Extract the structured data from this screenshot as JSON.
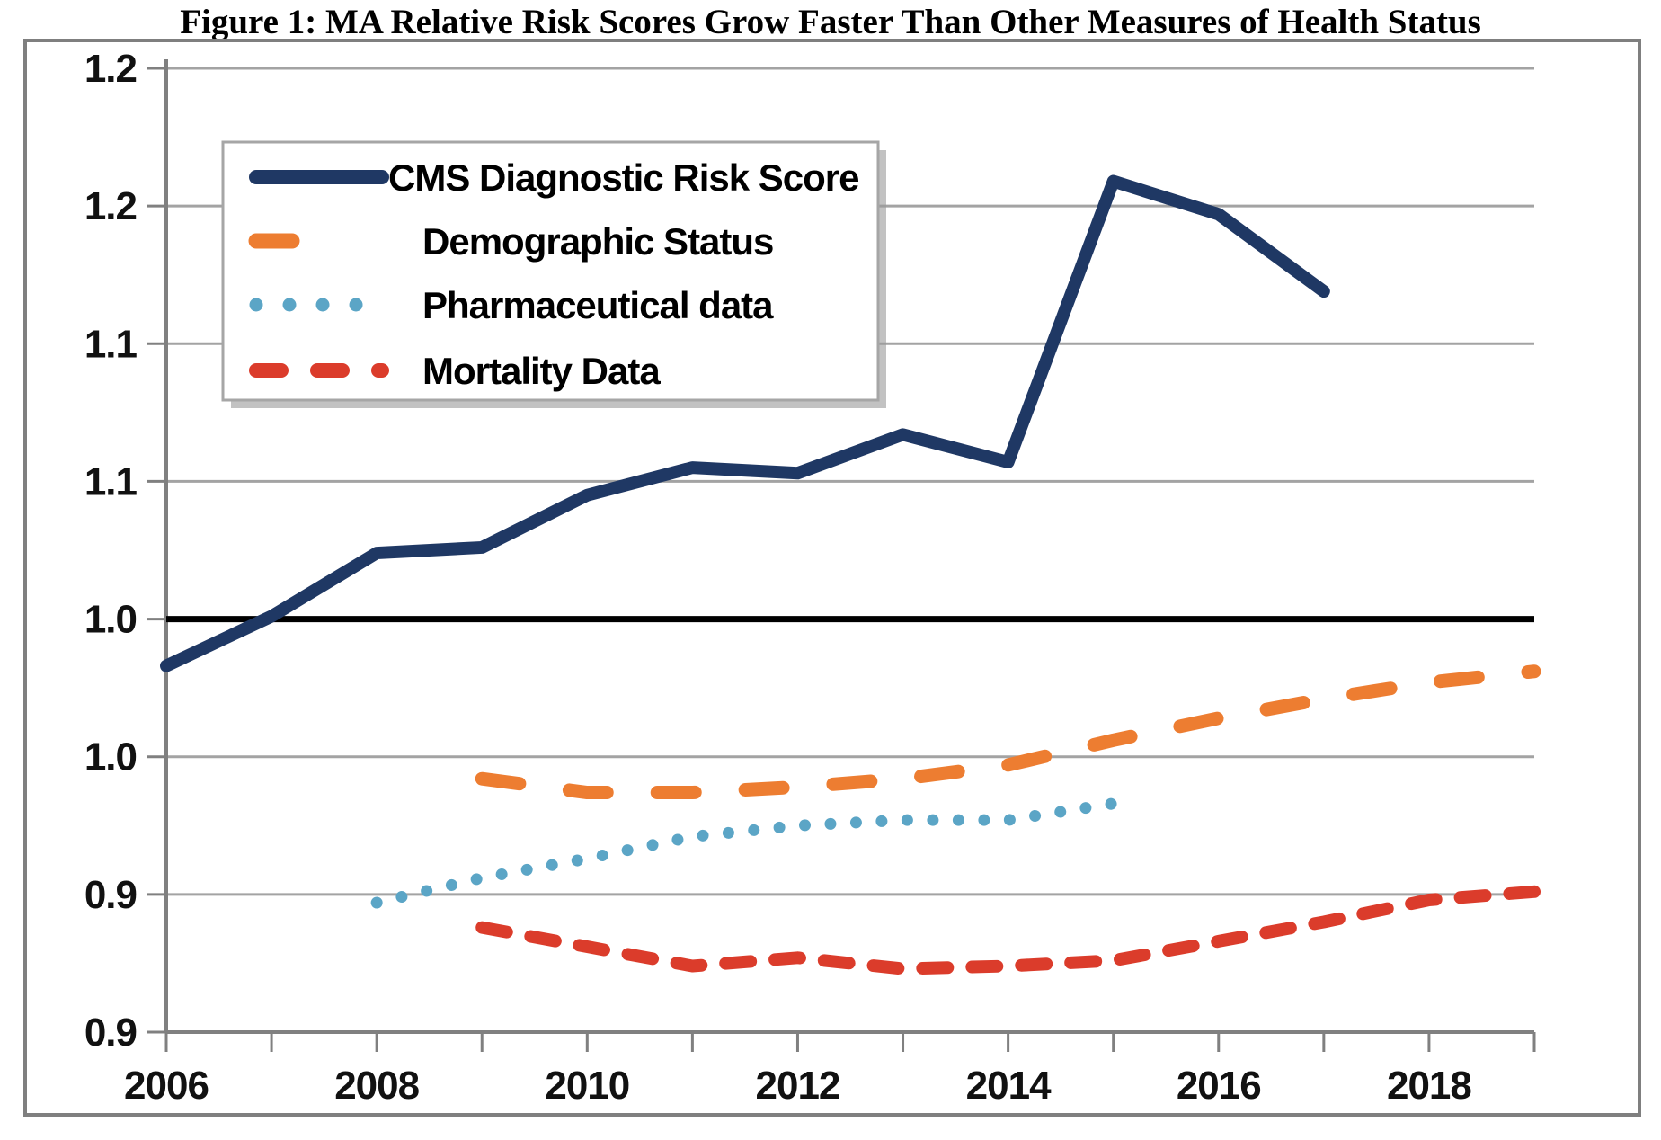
{
  "title": "Figure 1: MA Relative Risk Scores Grow Faster Than Other Measures of Health Status",
  "colors": {
    "navy": "#1F3864",
    "orange": "#ED7D31",
    "light_blue": "#5BA5C6",
    "red": "#DB3C2B",
    "gridline": "#A3A3A3",
    "axis": "#808080",
    "frame": "#7F7F7F",
    "reference_line": "#000000",
    "legend_border": "#A6A6A6",
    "legend_shadow": "#9A9A9A",
    "text": "#000000"
  },
  "chart_data": {
    "type": "line",
    "title": "Figure 1: MA Relative Risk Scores Grow Faster Than Other Measures of Health Status",
    "xlabel": "",
    "ylabel": "",
    "x_range": [
      2006,
      2019
    ],
    "x_tick_years_labeled": [
      2006,
      2008,
      2010,
      2012,
      2014,
      2016,
      2018
    ],
    "x_minor_tick_every_year": true,
    "y_axis": {
      "min": 0.85,
      "max": 1.2,
      "major_unit": 0.05,
      "tick_labels_top_to_bottom": [
        "1.2",
        "1.2",
        "1.1",
        "1.1",
        "1.0",
        "1.0",
        "0.9",
        "0.9"
      ],
      "note": "tick values 1.20-0.85 in 0.05 steps, displayed rounded to one decimal"
    },
    "grid": true,
    "reference_line": {
      "value": 1.0
    },
    "legend_position": "upper-left-inside",
    "series": [
      {
        "name": "CMS Diagnostic Risk Score",
        "color_key": "navy",
        "line_style": "solid",
        "x": [
          2006,
          2007,
          2008,
          2009,
          2010,
          2011,
          2012,
          2013,
          2014,
          2015,
          2016,
          2017
        ],
        "values": [
          0.983,
          1.001,
          1.024,
          1.026,
          1.045,
          1.055,
          1.053,
          1.067,
          1.057,
          1.159,
          1.147,
          1.119
        ]
      },
      {
        "name": "Demographic Status",
        "color_key": "orange",
        "line_style": "long-dash",
        "x": [
          2009,
          2010,
          2011,
          2012,
          2013,
          2014,
          2015,
          2016,
          2017,
          2018,
          2019
        ],
        "values": [
          0.942,
          0.937,
          0.937,
          0.939,
          0.942,
          0.947,
          0.956,
          0.964,
          0.971,
          0.977,
          0.981
        ]
      },
      {
        "name": "Pharmaceutical data",
        "color_key": "light_blue",
        "line_style": "dotted",
        "x": [
          2008,
          2009,
          2010,
          2011,
          2012,
          2013,
          2014,
          2015
        ],
        "values": [
          0.897,
          0.906,
          0.913,
          0.921,
          0.925,
          0.927,
          0.927,
          0.933
        ]
      },
      {
        "name": "Mortality Data",
        "color_key": "red",
        "line_style": "short-dash",
        "x": [
          2009,
          2010,
          2011,
          2012,
          2013,
          2014,
          2015,
          2016,
          2017,
          2018,
          2019
        ],
        "values": [
          0.888,
          0.881,
          0.874,
          0.877,
          0.873,
          0.874,
          0.876,
          0.883,
          0.89,
          0.898,
          0.901
        ]
      }
    ]
  }
}
